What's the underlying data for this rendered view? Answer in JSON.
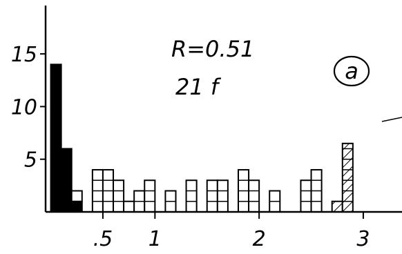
{
  "chart_data": {
    "type": "bar",
    "annotations": {
      "r_text": "R=0.51",
      "n_text": "21 f",
      "panel": "a"
    },
    "x_ticks": [
      {
        "value": 0.5,
        "label": ".5"
      },
      {
        "value": 1,
        "label": "1"
      },
      {
        "value": 2,
        "label": "2"
      },
      {
        "value": 3,
        "label": "3"
      }
    ],
    "y_ticks": [
      {
        "value": 5,
        "label": "5"
      },
      {
        "value": 10,
        "label": "10"
      },
      {
        "value": 15,
        "label": "15"
      }
    ],
    "xlim": [
      -0.05,
      3.5
    ],
    "ylim": [
      0,
      19
    ],
    "bin_width": 0.1,
    "bars": [
      {
        "x": 0.0,
        "segments": [
          {
            "count": 14,
            "style": "solid"
          }
        ]
      },
      {
        "x": 0.1,
        "segments": [
          {
            "count": 6,
            "style": "solid"
          }
        ]
      },
      {
        "x": 0.2,
        "segments": [
          {
            "count": 1,
            "style": "solid"
          },
          {
            "count": 1,
            "style": "open"
          }
        ]
      },
      {
        "x": 0.4,
        "segments": [
          {
            "count": 4,
            "style": "open"
          }
        ]
      },
      {
        "x": 0.5,
        "segments": [
          {
            "count": 4,
            "style": "open"
          }
        ]
      },
      {
        "x": 0.6,
        "segments": [
          {
            "count": 3,
            "style": "open"
          }
        ]
      },
      {
        "x": 0.7,
        "segments": [
          {
            "count": 1,
            "style": "open"
          }
        ]
      },
      {
        "x": 0.8,
        "segments": [
          {
            "count": 2,
            "style": "open"
          }
        ]
      },
      {
        "x": 0.9,
        "segments": [
          {
            "count": 3,
            "style": "open"
          }
        ]
      },
      {
        "x": 1.1,
        "segments": [
          {
            "count": 2,
            "style": "open"
          }
        ]
      },
      {
        "x": 1.3,
        "segments": [
          {
            "count": 3,
            "style": "open"
          }
        ]
      },
      {
        "x": 1.5,
        "segments": [
          {
            "count": 3,
            "style": "open"
          }
        ]
      },
      {
        "x": 1.6,
        "segments": [
          {
            "count": 3,
            "style": "open"
          }
        ]
      },
      {
        "x": 1.8,
        "segments": [
          {
            "count": 4,
            "style": "open"
          }
        ]
      },
      {
        "x": 1.9,
        "segments": [
          {
            "count": 3,
            "style": "open"
          }
        ]
      },
      {
        "x": 2.1,
        "segments": [
          {
            "count": 2,
            "style": "open"
          }
        ]
      },
      {
        "x": 2.4,
        "segments": [
          {
            "count": 3,
            "style": "open"
          }
        ]
      },
      {
        "x": 2.5,
        "segments": [
          {
            "count": 4,
            "style": "open"
          }
        ]
      },
      {
        "x": 2.7,
        "segments": [
          {
            "count": 1,
            "style": "hatched"
          }
        ]
      },
      {
        "x": 2.8,
        "segments": [
          {
            "count": 6.5,
            "style": "hatched"
          }
        ]
      }
    ],
    "colors": {
      "ink": "#000000",
      "paper": "#ffffff"
    }
  }
}
